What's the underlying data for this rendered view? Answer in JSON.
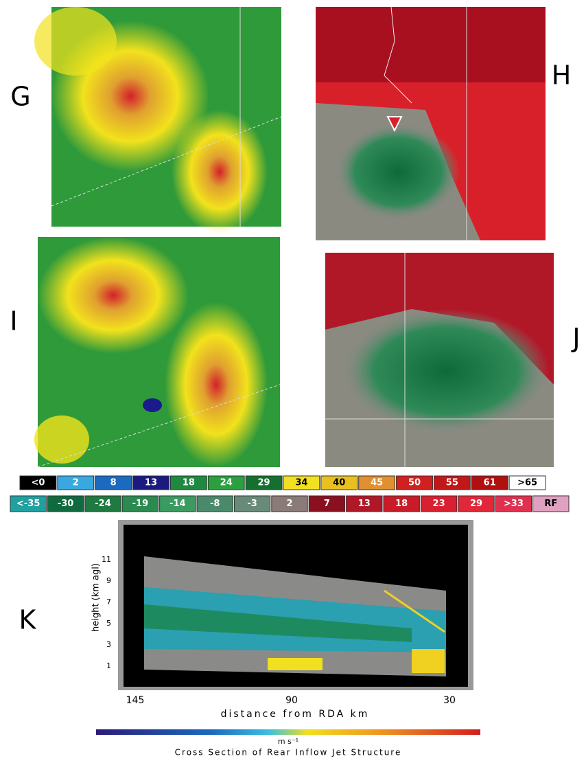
{
  "panels": {
    "g": {
      "label": "G"
    },
    "h": {
      "label": "H"
    },
    "i": {
      "label": "I"
    },
    "j": {
      "label": "J"
    },
    "k": {
      "label": "K"
    }
  },
  "legend": {
    "reflectivity": [
      "<0",
      "2",
      "8",
      "13",
      "18",
      "24",
      "29",
      "34",
      "40",
      "45",
      "50",
      "55",
      "61",
      ">65"
    ],
    "velocity": [
      "<-35",
      "-30",
      "-24",
      "-19",
      "-14",
      "-8",
      "-3",
      "2",
      "7",
      "13",
      "18",
      "23",
      "29",
      ">33",
      "RF"
    ]
  },
  "cross_section": {
    "y_label": "height (km agl)",
    "y_ticks": [
      "1",
      "3",
      "5",
      "7",
      "9",
      "11"
    ],
    "x_label": "distance from RDA km",
    "x_ticks": [
      "145",
      "90",
      "30"
    ],
    "unit": "m s⁻¹",
    "caption": "Cross Section of Rear Inflow Jet Structure"
  }
}
